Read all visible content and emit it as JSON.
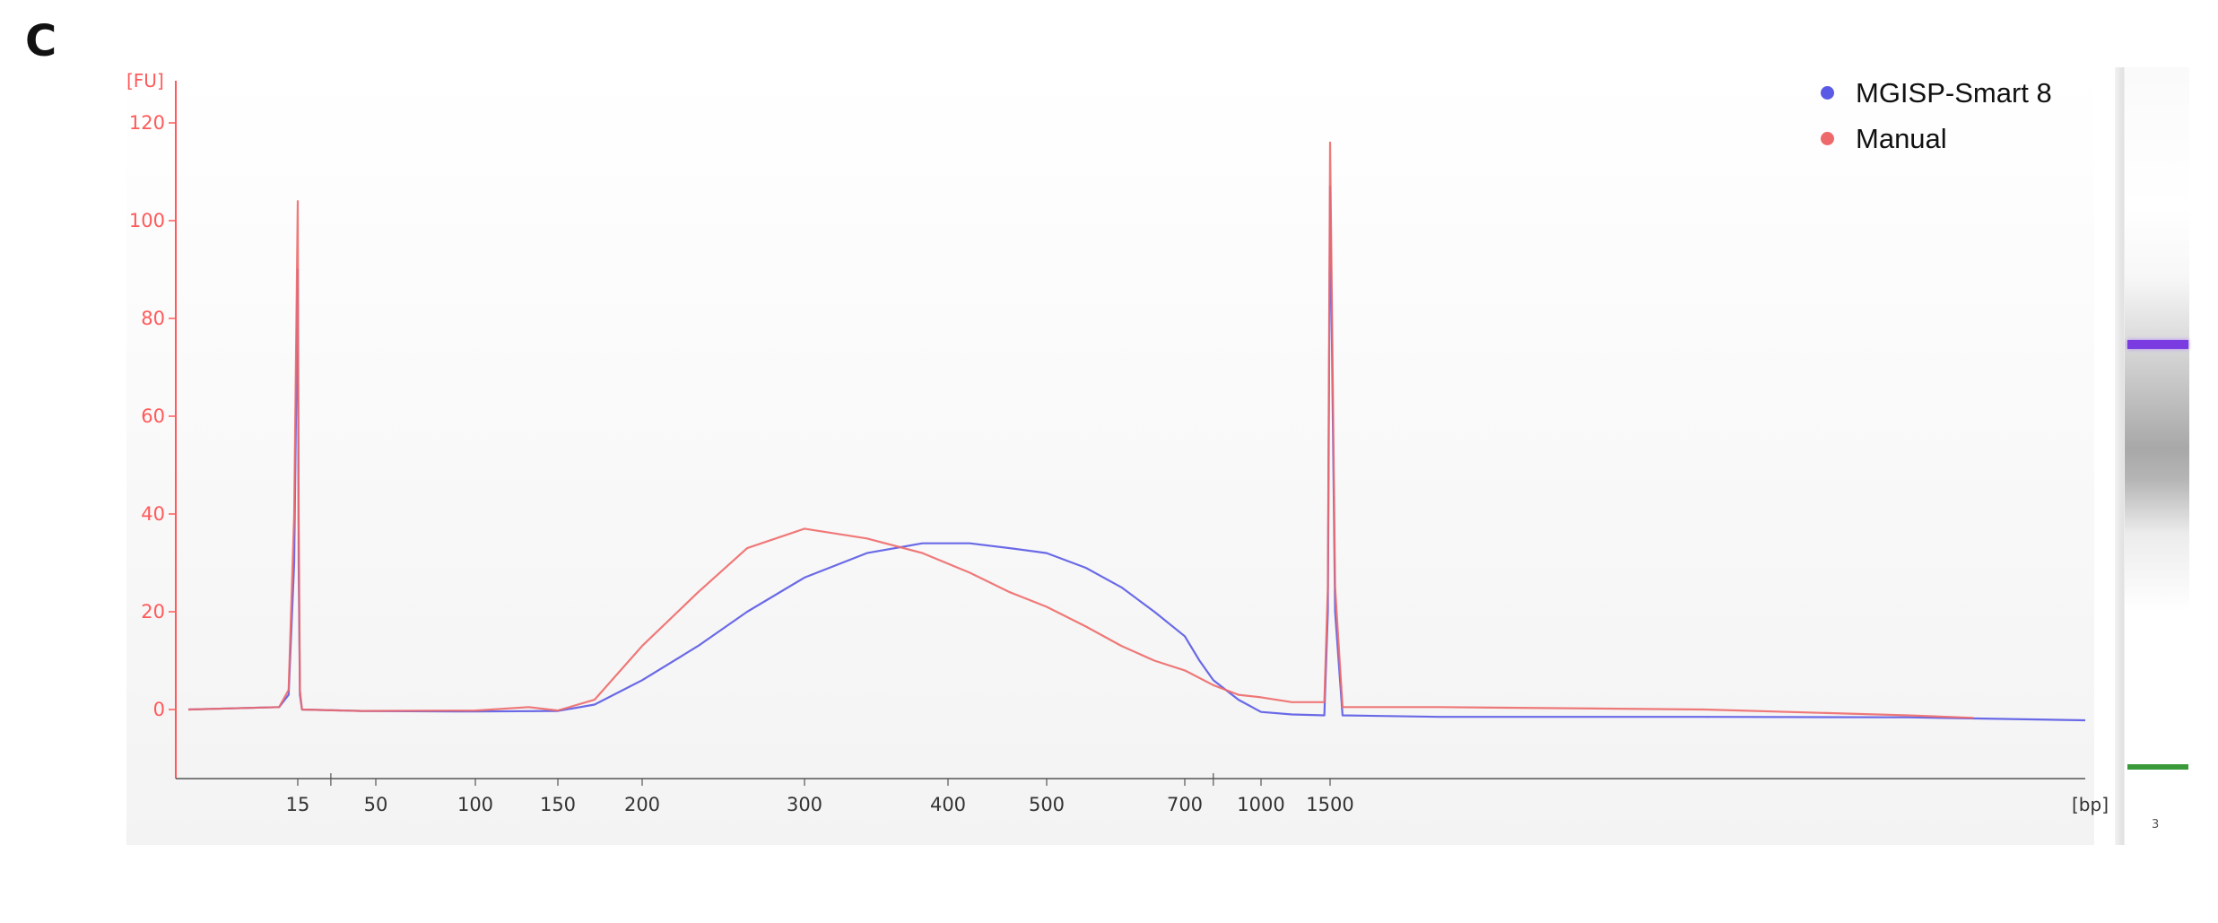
{
  "panel_label": "C",
  "legend": [
    {
      "label": "MGISP-Smart 8",
      "color": "#5a5ae6"
    },
    {
      "label": "Manual",
      "color": "#ee6a6a"
    }
  ],
  "gel": {
    "lane_label": "3"
  },
  "chart_data": {
    "type": "line",
    "ylabel": "[FU]",
    "xlabel": "[bp]",
    "ylim": [
      -14,
      125
    ],
    "y_ticks": [
      0,
      20,
      40,
      60,
      80,
      100,
      120
    ],
    "x_ticks": [
      "15",
      "50",
      "100",
      "150",
      "200",
      "300",
      "400",
      "500",
      "700",
      "1000",
      "1500"
    ],
    "x_scale": "nonlinear size ladder",
    "grid": false,
    "legend_position": "top-right",
    "series": [
      {
        "name": "MGISP-Smart 8",
        "color": "#5a5ae6",
        "points": [
          [
            10,
            0
          ],
          [
            14,
            0.5
          ],
          [
            14.5,
            3
          ],
          [
            14.8,
            30
          ],
          [
            15,
            90
          ],
          [
            15.2,
            30
          ],
          [
            15.5,
            3
          ],
          [
            16,
            0
          ],
          [
            40,
            -0.3
          ],
          [
            100,
            -0.4
          ],
          [
            150,
            -0.3
          ],
          [
            170,
            1
          ],
          [
            200,
            6
          ],
          [
            230,
            13
          ],
          [
            260,
            20
          ],
          [
            300,
            27
          ],
          [
            340,
            32
          ],
          [
            380,
            34
          ],
          [
            420,
            34
          ],
          [
            460,
            33
          ],
          [
            500,
            32
          ],
          [
            550,
            29
          ],
          [
            600,
            25
          ],
          [
            650,
            20
          ],
          [
            700,
            15
          ],
          [
            750,
            10
          ],
          [
            800,
            6
          ],
          [
            900,
            2
          ],
          [
            1000,
            -0.5
          ],
          [
            1200,
            -1
          ],
          [
            1450,
            -1.2
          ],
          [
            1480,
            20
          ],
          [
            1500,
            107
          ],
          [
            1520,
            20
          ],
          [
            1550,
            -1.2
          ],
          [
            2000,
            -1.5
          ],
          [
            4000,
            -1.5
          ],
          [
            8000,
            -1.6
          ],
          [
            12000,
            -2.2
          ]
        ]
      },
      {
        "name": "Manual",
        "color": "#ee6a6a",
        "points": [
          [
            10,
            0
          ],
          [
            14,
            0.5
          ],
          [
            14.5,
            4
          ],
          [
            14.8,
            40
          ],
          [
            15,
            104
          ],
          [
            15.2,
            40
          ],
          [
            15.5,
            4
          ],
          [
            16,
            0
          ],
          [
            40,
            -0.3
          ],
          [
            100,
            -0.2
          ],
          [
            130,
            0.5
          ],
          [
            150,
            -0.2
          ],
          [
            170,
            2
          ],
          [
            200,
            13
          ],
          [
            230,
            24
          ],
          [
            260,
            33
          ],
          [
            300,
            37
          ],
          [
            340,
            35
          ],
          [
            380,
            32
          ],
          [
            420,
            28
          ],
          [
            460,
            24
          ],
          [
            500,
            21
          ],
          [
            550,
            17
          ],
          [
            600,
            13
          ],
          [
            650,
            10
          ],
          [
            700,
            8
          ],
          [
            800,
            5
          ],
          [
            900,
            3
          ],
          [
            1000,
            2.5
          ],
          [
            1200,
            1.5
          ],
          [
            1450,
            1.5
          ],
          [
            1480,
            25
          ],
          [
            1500,
            116
          ],
          [
            1520,
            25
          ],
          [
            1550,
            0.5
          ],
          [
            2000,
            0.5
          ],
          [
            4000,
            0
          ],
          [
            8000,
            -1.2
          ],
          [
            10000,
            -1.7
          ]
        ]
      }
    ]
  }
}
